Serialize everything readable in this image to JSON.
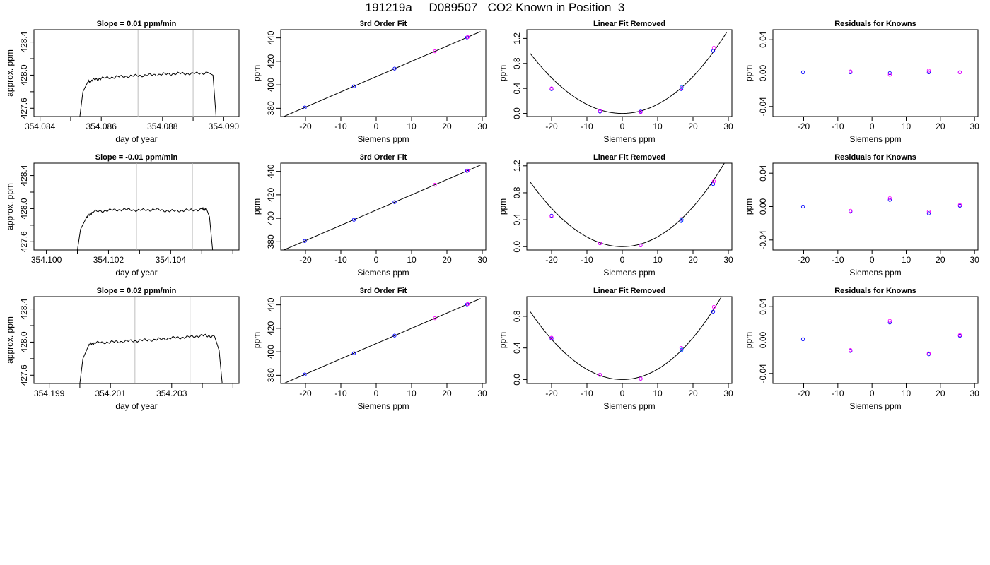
{
  "page": {
    "title": "191219a     D089507   CO2 Known in Position  3",
    "colors": {
      "axes": "#000000",
      "line": "#000000",
      "vline": "#bebebe",
      "blue": "#0000ff",
      "red": "#ff00ff",
      "cyan": "#1e90ff",
      "pink": "#ff69b4"
    }
  },
  "chart_data": [
    {
      "type": "line",
      "panel": "time-series",
      "title": "Slope =  0.01  ppm/min",
      "xlabel": "day of year",
      "ylabel": "approx. ppm",
      "xlim": [
        354.0838,
        354.0905
      ],
      "ylim": [
        427.5,
        428.55
      ],
      "xticks": [
        "354.084",
        "354.085",
        "354.086",
        "354.087",
        "354.088",
        "354.089",
        "354.090"
      ],
      "xtick_labels_shown": [
        "354.084",
        "",
        "354.086",
        "",
        "354.088",
        "",
        "354.090"
      ],
      "yticks": [
        "427.6",
        "427.8",
        "428.0",
        "428.2",
        "428.4"
      ],
      "ytick_labels_shown": [
        "427.6",
        "",
        "428.0",
        "",
        "428.4"
      ],
      "vlines": [
        354.0872,
        354.089
      ],
      "series": [
        {
          "x": [
            354.0853,
            354.0854,
            354.08555,
            354.0857,
            354.086,
            354.0865,
            354.087,
            354.0875,
            354.088,
            354.0885,
            354.089,
            354.0895,
            354.08965,
            354.08975
          ],
          "y": [
            427.5,
            427.8,
            427.91,
            427.94,
            427.96,
            427.98,
            427.99,
            428.0,
            428.01,
            428.02,
            428.02,
            428.03,
            428.0,
            427.5
          ]
        }
      ]
    },
    {
      "type": "scatter",
      "panel": "fit",
      "title": "3rd Order Fit",
      "xlabel": "Siemens ppm",
      "ylabel": "ppm",
      "xlim": [
        -27,
        31
      ],
      "ylim": [
        373,
        447
      ],
      "xticks": [
        "-20",
        "-10",
        "0",
        "10",
        "20",
        "30"
      ],
      "yticks": [
        "380",
        "400",
        "420",
        "440"
      ],
      "fit": {
        "type": "cubic",
        "coef": [
          407.0,
          1.3,
          0.0,
          0.0
        ]
      },
      "series": [
        {
          "color": "blue",
          "x": [
            -20.2,
            -6.3,
            5.2,
            25.7
          ],
          "y": [
            380.7,
            398.8,
            413.8,
            440.4
          ]
        },
        {
          "color": "red",
          "x": [
            16.6,
            25.9
          ],
          "y": [
            428.6,
            440.7
          ]
        }
      ]
    },
    {
      "type": "scatter",
      "panel": "residual-fit",
      "title": "Linear Fit Removed",
      "xlabel": "Siemens ppm",
      "ylabel": "ppm",
      "xlim": [
        -27,
        31
      ],
      "ylim": [
        -0.05,
        1.34
      ],
      "xticks": [
        "-20",
        "-10",
        "0",
        "10",
        "20",
        "30"
      ],
      "yticks": [
        "0.0",
        "0.4",
        "0.8",
        "1.2"
      ],
      "fit": {
        "type": "poly",
        "coef": [
          0.0,
          0.0,
          0.00145,
          1.3e-06
        ],
        "xrange": [
          -26,
          29.5
        ]
      },
      "series": [
        {
          "color": "blue",
          "x": [
            -20,
            -6.3,
            5.2,
            16.7,
            25.7
          ],
          "y": [
            0.39,
            0.03,
            0.03,
            0.39,
            1.0
          ]
        },
        {
          "color": "red",
          "x": [
            -20,
            -6.3,
            5.2,
            16.7,
            25.9
          ],
          "y": [
            0.4,
            0.04,
            0.02,
            0.41,
            1.05
          ]
        },
        {
          "color": "cyan",
          "x": [
            16.8
          ],
          "y": [
            0.42
          ]
        }
      ]
    },
    {
      "type": "scatter",
      "panel": "residuals",
      "title": "Residuals for Knowns",
      "xlabel": "Siemens ppm",
      "ylabel": "ppm",
      "xlim": [
        -29,
        31
      ],
      "ylim": [
        -0.052,
        0.052
      ],
      "xticks": [
        "-20",
        "-10",
        "0",
        "10",
        "20",
        "30"
      ],
      "yticks": [
        "-0.04",
        "0.00",
        "0.04"
      ],
      "series": [
        {
          "color": "blue",
          "x": [
            -20.2,
            -6.3,
            5.2,
            16.6,
            25.7
          ],
          "y": [
            0.001,
            0.001,
            0.0,
            0.001,
            0.001
          ]
        },
        {
          "color": "red",
          "x": [
            -6.3,
            5.2,
            16.6,
            25.7
          ],
          "y": [
            0.002,
            -0.002,
            0.003,
            0.001
          ]
        }
      ]
    },
    {
      "type": "line",
      "panel": "time-series",
      "title": "Slope =  -0.01  ppm/min",
      "xlabel": "day of year",
      "ylabel": "approx. ppm",
      "xlim": [
        354.0996,
        354.1062
      ],
      "ylim": [
        427.5,
        428.55
      ],
      "xticks": [
        "354.100",
        "354.101",
        "354.102",
        "354.103",
        "354.104",
        "354.105",
        "354.106"
      ],
      "xtick_labels_shown": [
        "354.100",
        "",
        "354.102",
        "",
        "354.104",
        "",
        ""
      ],
      "yticks": [
        "427.6",
        "427.8",
        "428.0",
        "428.2",
        "428.4"
      ],
      "ytick_labels_shown": [
        "427.6",
        "",
        "428.0",
        "",
        "428.4"
      ],
      "vlines": [
        354.1029,
        354.1047
      ],
      "series": [
        {
          "x": [
            354.101,
            354.1011,
            354.1013,
            354.1015,
            354.102,
            354.1025,
            354.103,
            354.1035,
            354.104,
            354.1045,
            354.105,
            354.10515,
            354.10525,
            354.10535
          ],
          "y": [
            427.5,
            427.75,
            427.9,
            427.96,
            427.98,
            427.99,
            427.98,
            427.99,
            427.97,
            427.98,
            427.99,
            428.0,
            427.9,
            427.5
          ]
        }
      ]
    },
    {
      "type": "scatter",
      "panel": "fit",
      "title": "3rd Order Fit",
      "xlabel": "Siemens ppm",
      "ylabel": "ppm",
      "xlim": [
        -27,
        31
      ],
      "ylim": [
        373,
        447
      ],
      "xticks": [
        "-20",
        "-10",
        "0",
        "10",
        "20",
        "30"
      ],
      "yticks": [
        "380",
        "400",
        "420",
        "440"
      ],
      "fit": {
        "type": "cubic",
        "coef": [
          407.0,
          1.3,
          0.0,
          0.0
        ]
      },
      "series": [
        {
          "color": "blue",
          "x": [
            -20.2,
            -6.3,
            5.2,
            25.7
          ],
          "y": [
            380.7,
            398.8,
            413.8,
            440.4
          ]
        },
        {
          "color": "red",
          "x": [
            16.6,
            25.9
          ],
          "y": [
            428.6,
            440.7
          ]
        }
      ]
    },
    {
      "type": "scatter",
      "panel": "residual-fit",
      "title": "Linear Fit Removed",
      "xlabel": "Siemens ppm",
      "ylabel": "ppm",
      "xlim": [
        -27,
        31
      ],
      "ylim": [
        -0.05,
        1.24
      ],
      "xticks": [
        "-20",
        "-10",
        "0",
        "10",
        "20",
        "30"
      ],
      "yticks": [
        "0.0",
        "0.4",
        "0.8",
        "1.2"
      ],
      "fit": {
        "type": "poly",
        "coef": [
          0.0,
          0.0,
          0.00145,
          1.3e-06
        ],
        "xrange": [
          -26,
          29.5
        ]
      },
      "series": [
        {
          "color": "blue",
          "x": [
            -20,
            -6.3,
            5.2,
            16.7,
            25.7
          ],
          "y": [
            0.46,
            0.05,
            0.02,
            0.38,
            0.93
          ]
        },
        {
          "color": "red",
          "x": [
            -20,
            -6.3,
            5.2,
            16.7,
            25.9
          ],
          "y": [
            0.45,
            0.05,
            0.02,
            0.41,
            0.97
          ]
        },
        {
          "color": "cyan",
          "x": [
            16.8
          ],
          "y": [
            0.4
          ]
        }
      ]
    },
    {
      "type": "scatter",
      "panel": "residuals",
      "title": "Residuals for Knowns",
      "xlabel": "Siemens ppm",
      "ylabel": "ppm",
      "xlim": [
        -29,
        31
      ],
      "ylim": [
        -0.052,
        0.052
      ],
      "xticks": [
        "-20",
        "-10",
        "0",
        "10",
        "20",
        "30"
      ],
      "yticks": [
        "-0.04",
        "0.00",
        "0.04"
      ],
      "series": [
        {
          "color": "blue",
          "x": [
            -20.2,
            -6.3,
            5.2,
            16.6,
            25.7
          ],
          "y": [
            0.0,
            -0.006,
            0.008,
            -0.008,
            0.001
          ]
        },
        {
          "color": "red",
          "x": [
            -6.3,
            5.2,
            16.6,
            25.7
          ],
          "y": [
            -0.005,
            0.01,
            -0.006,
            0.002
          ]
        }
      ]
    },
    {
      "type": "line",
      "panel": "time-series",
      "title": "Slope =  0.02  ppm/min",
      "xlabel": "day of year",
      "ylabel": "approx. ppm",
      "xlim": [
        354.1985,
        354.2052
      ],
      "ylim": [
        427.5,
        428.55
      ],
      "xticks": [
        "354.199",
        "354.200",
        "354.201",
        "354.202",
        "354.203",
        "354.204",
        "354.205"
      ],
      "xtick_labels_shown": [
        "354.199",
        "",
        "354.201",
        "",
        "354.203",
        "",
        ""
      ],
      "yticks": [
        "427.6",
        "427.8",
        "428.0",
        "428.2",
        "428.4"
      ],
      "ytick_labels_shown": [
        "427.6",
        "",
        "428.0",
        "",
        "428.4"
      ],
      "vlines": [
        354.2018,
        354.2036
      ],
      "series": [
        {
          "x": [
            354.2,
            354.2001,
            354.2003,
            354.2005,
            354.201,
            354.2015,
            354.202,
            354.2025,
            354.203,
            354.2035,
            354.204,
            354.2044,
            354.20455,
            354.20465
          ],
          "y": [
            427.5,
            427.8,
            427.97,
            427.99,
            428.0,
            428.01,
            428.02,
            428.03,
            428.05,
            428.06,
            428.08,
            428.07,
            427.9,
            427.5
          ]
        }
      ]
    },
    {
      "type": "scatter",
      "panel": "fit",
      "title": "3rd Order Fit",
      "xlabel": "Siemens ppm",
      "ylabel": "ppm",
      "xlim": [
        -27,
        31
      ],
      "ylim": [
        373,
        447
      ],
      "xticks": [
        "-20",
        "-10",
        "0",
        "10",
        "20",
        "30"
      ],
      "yticks": [
        "380",
        "400",
        "420",
        "440"
      ],
      "fit": {
        "type": "cubic",
        "coef": [
          407.0,
          1.3,
          0.0,
          0.0
        ]
      },
      "series": [
        {
          "color": "blue",
          "x": [
            -20.2,
            -6.3,
            5.2,
            25.7
          ],
          "y": [
            380.7,
            398.8,
            413.8,
            440.4
          ]
        },
        {
          "color": "red",
          "x": [
            16.6,
            25.9
          ],
          "y": [
            428.6,
            440.7
          ]
        }
      ]
    },
    {
      "type": "scatter",
      "panel": "residual-fit",
      "title": "Linear Fit Removed",
      "xlabel": "Siemens ppm",
      "ylabel": "ppm",
      "xlim": [
        -27,
        31
      ],
      "ylim": [
        -0.05,
        1.05
      ],
      "xticks": [
        "-20",
        "-10",
        "0",
        "10",
        "20",
        "30"
      ],
      "yticks": [
        "0.0",
        "0.4",
        "0.8"
      ],
      "fit": {
        "type": "poly",
        "coef": [
          0.0,
          0.0,
          0.0013,
          1.2e-06
        ],
        "xrange": [
          -26,
          29.5
        ]
      },
      "series": [
        {
          "color": "blue",
          "x": [
            -20,
            -6.3,
            5.2,
            16.7,
            25.7
          ],
          "y": [
            0.52,
            0.06,
            0.01,
            0.37,
            0.86
          ]
        },
        {
          "color": "red",
          "x": [
            -20,
            -6.3,
            5.2,
            16.7,
            25.9
          ],
          "y": [
            0.53,
            0.06,
            0.01,
            0.4,
            0.92
          ]
        },
        {
          "color": "cyan",
          "x": [
            16.8
          ],
          "y": [
            0.38
          ]
        }
      ]
    },
    {
      "type": "scatter",
      "panel": "residuals",
      "title": "Residuals for Knowns",
      "xlabel": "Siemens ppm",
      "ylabel": "ppm",
      "xlim": [
        -29,
        31
      ],
      "ylim": [
        -0.052,
        0.052
      ],
      "xticks": [
        "-20",
        "-10",
        "0",
        "10",
        "20",
        "30"
      ],
      "yticks": [
        "-0.04",
        "0.00",
        "0.04"
      ],
      "series": [
        {
          "color": "blue",
          "x": [
            -20.2,
            -6.3,
            5.2,
            16.6,
            25.7
          ],
          "y": [
            0.001,
            -0.013,
            0.021,
            -0.017,
            0.005
          ]
        },
        {
          "color": "red",
          "x": [
            -6.3,
            5.2,
            16.6,
            25.7
          ],
          "y": [
            -0.012,
            0.023,
            -0.016,
            0.006
          ]
        }
      ]
    }
  ]
}
